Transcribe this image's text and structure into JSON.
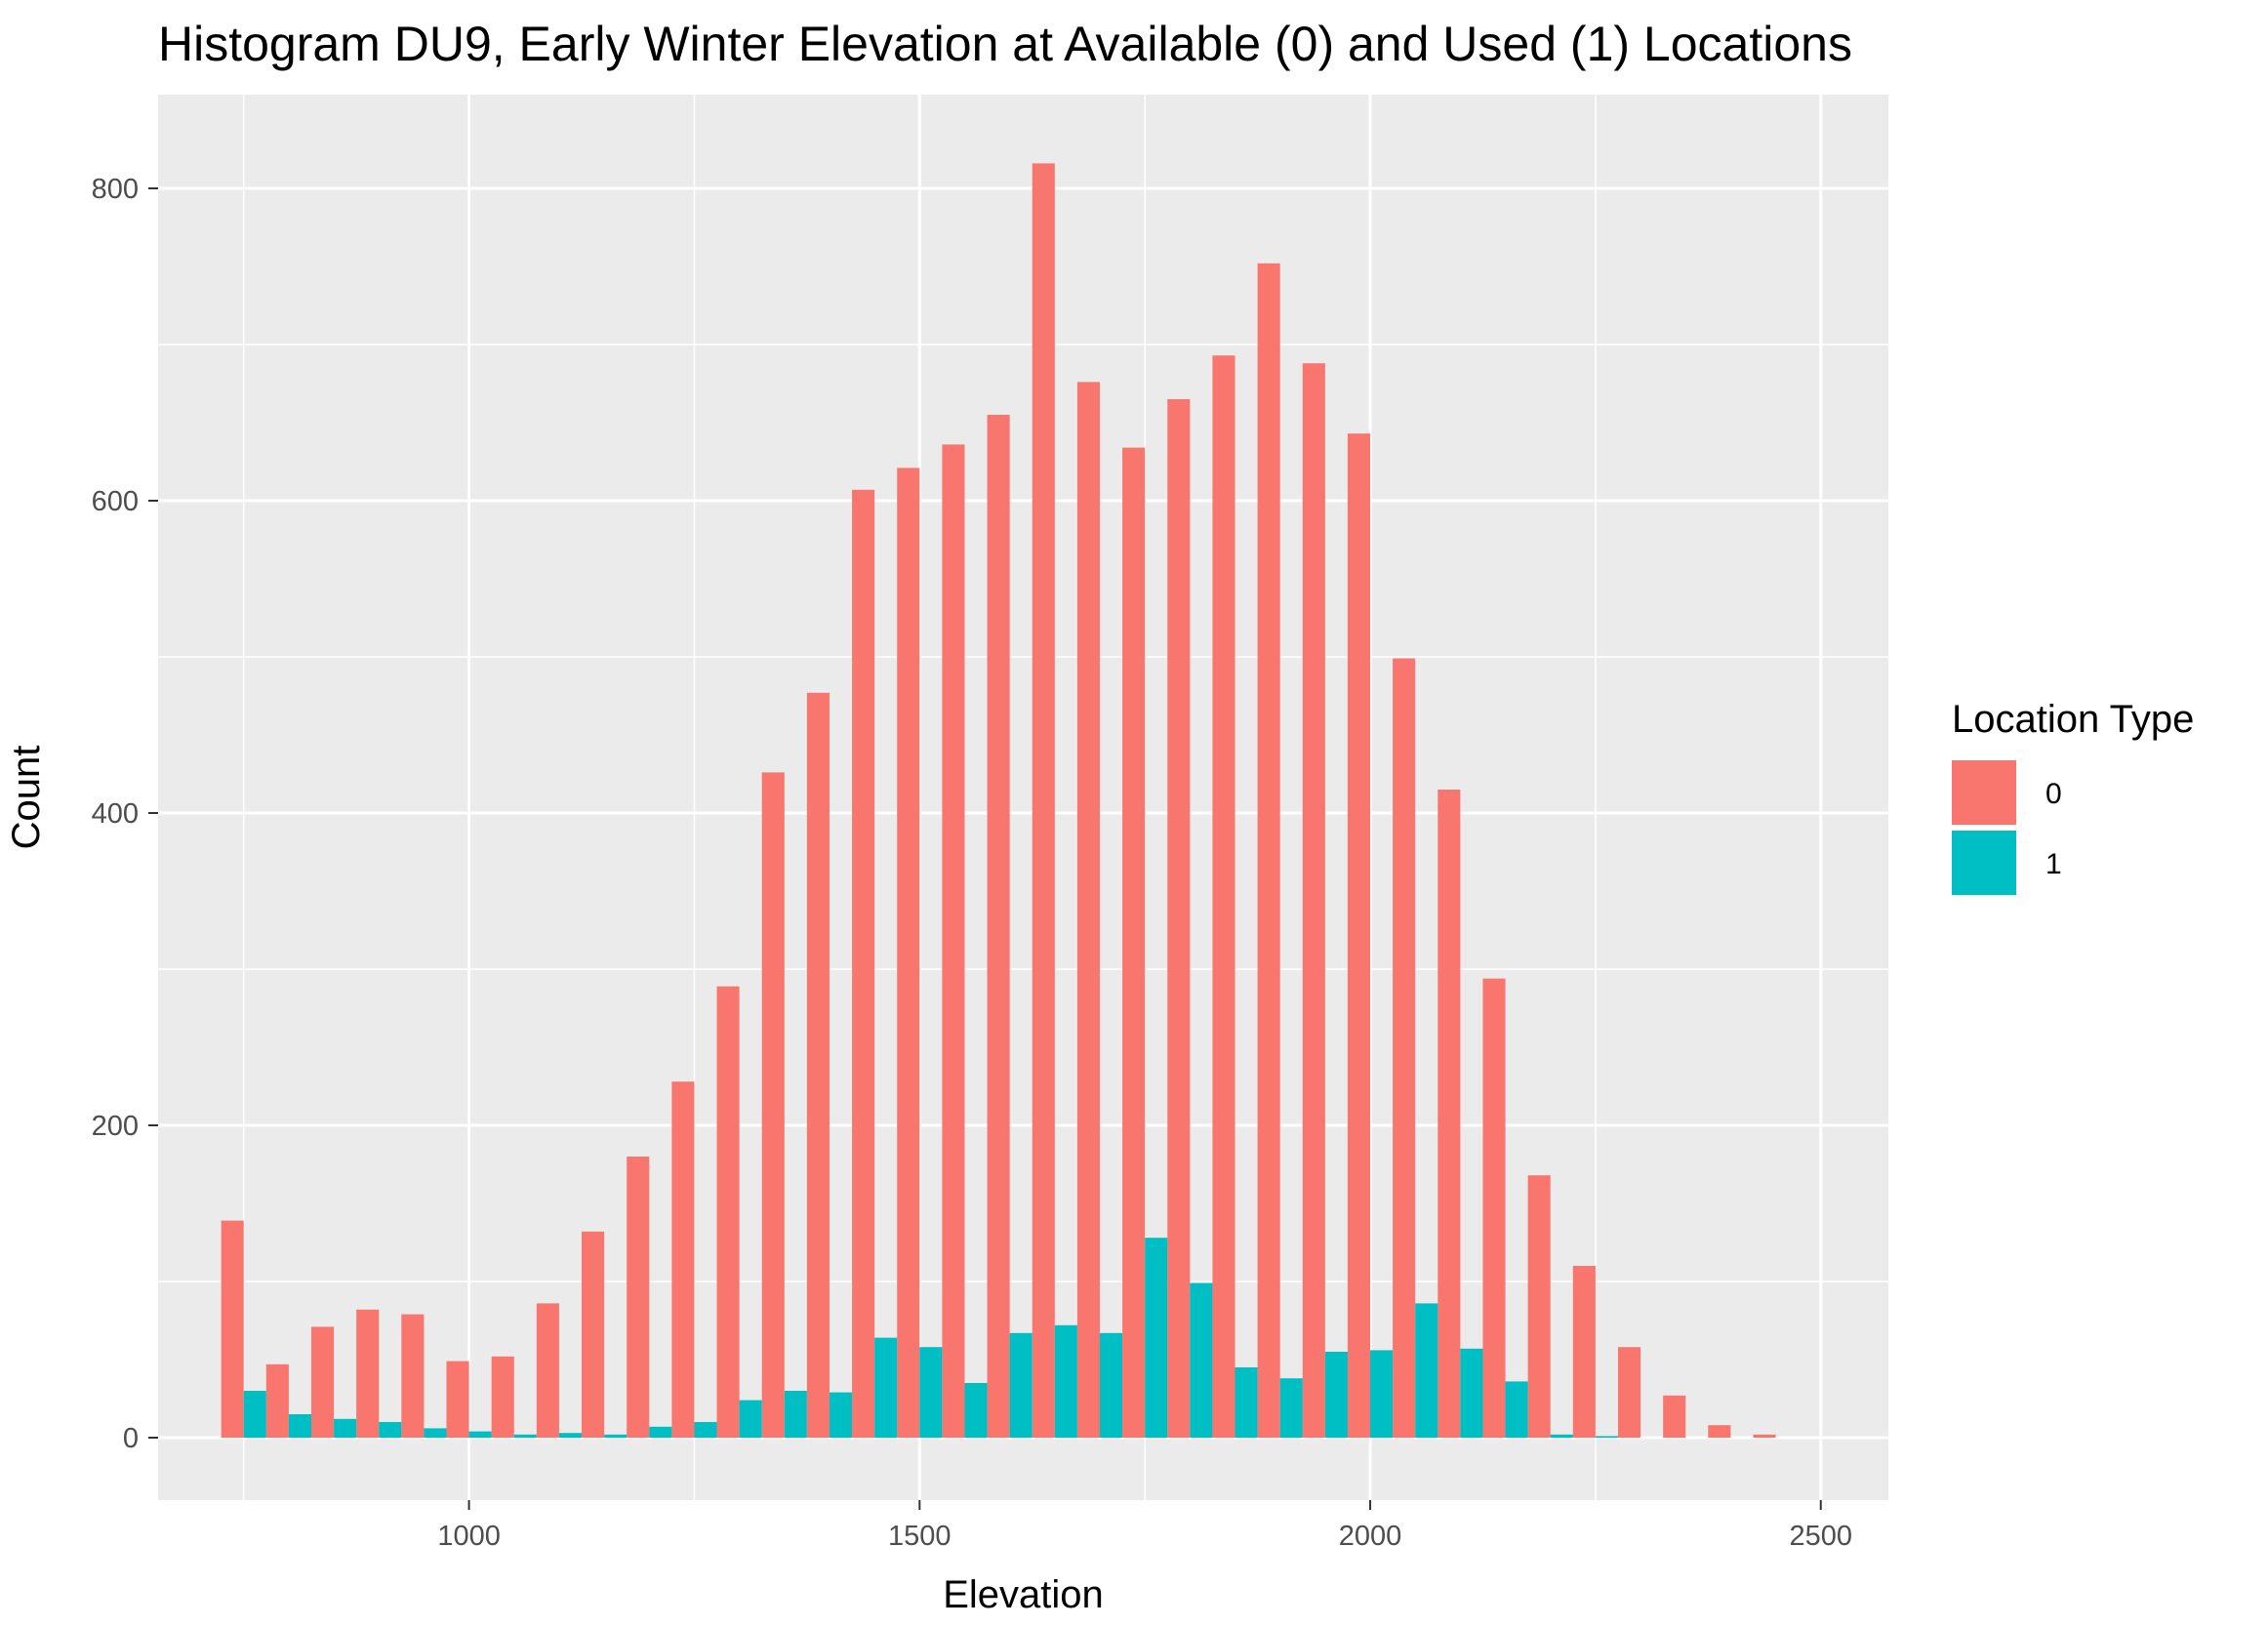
{
  "chart_data": {
    "type": "bar",
    "title": "Histogram DU9, Early Winter Elevation at Available (0) and Used (1) Locations",
    "xlabel": "Elevation",
    "ylabel": "Count",
    "xlim": [
      655,
      2575
    ],
    "ylim": [
      -40,
      860
    ],
    "x_ticks": [
      1000,
      1500,
      2000,
      2500
    ],
    "y_ticks": [
      0,
      200,
      400,
      600,
      800
    ],
    "grid": true,
    "legend": {
      "title": "Location Type",
      "position": "right"
    },
    "bin_width": 50,
    "x": [
      750,
      800,
      850,
      900,
      950,
      1000,
      1050,
      1100,
      1150,
      1200,
      1250,
      1300,
      1350,
      1400,
      1450,
      1500,
      1550,
      1600,
      1650,
      1700,
      1750,
      1800,
      1850,
      1900,
      1950,
      2000,
      2050,
      2100,
      2150,
      2200,
      2250,
      2300,
      2350,
      2400,
      2450
    ],
    "series": [
      {
        "name": "0",
        "color": "#F8766D",
        "values": [
          139,
          47,
          71,
          82,
          79,
          49,
          52,
          86,
          132,
          180,
          228,
          289,
          426,
          477,
          607,
          621,
          636,
          655,
          816,
          676,
          634,
          665,
          693,
          752,
          688,
          643,
          499,
          415,
          294,
          168,
          110,
          58,
          27,
          8,
          2
        ]
      },
      {
        "name": "1",
        "color": "#00BFC4",
        "values": [
          30,
          15,
          12,
          10,
          6,
          4,
          2,
          3,
          2,
          7,
          10,
          24,
          30,
          29,
          64,
          58,
          35,
          67,
          72,
          67,
          128,
          99,
          45,
          38,
          55,
          56,
          86,
          57,
          36,
          2,
          1,
          0,
          0,
          0,
          0
        ]
      }
    ]
  }
}
